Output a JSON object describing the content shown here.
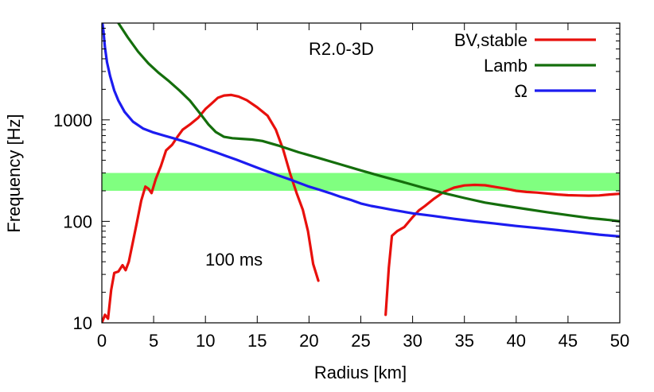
{
  "chart_data": {
    "type": "line",
    "xlabel": "Radius [km]",
    "ylabel": "Frequency [Hz]",
    "xlim": [
      0,
      50
    ],
    "ylim": [
      10,
      9000
    ],
    "yscale": "log",
    "x_ticks": [
      0,
      5,
      10,
      15,
      20,
      25,
      30,
      35,
      40,
      45,
      50
    ],
    "y_ticks": [
      10,
      100,
      1000
    ],
    "grid": false,
    "legend_position": "top-right",
    "annotations": {
      "model": "R2.0-3D",
      "time": "100 ms"
    },
    "band": {
      "y_min": 200,
      "y_max": 300,
      "color": "#80ff80"
    },
    "series": [
      {
        "name": "BV,stable",
        "color": "#e8100c",
        "segments": [
          [
            [
              0,
              10
            ],
            [
              0.3,
              12
            ],
            [
              0.6,
              11
            ],
            [
              0.9,
              21
            ],
            [
              1.2,
              31
            ],
            [
              1.6,
              32
            ],
            [
              2.0,
              37
            ],
            [
              2.3,
              33
            ],
            [
              2.6,
              40
            ],
            [
              3.0,
              63
            ],
            [
              3.4,
              100
            ],
            [
              3.8,
              160
            ],
            [
              4.2,
              220
            ],
            [
              4.5,
              210
            ],
            [
              4.8,
              190
            ],
            [
              5.2,
              260
            ],
            [
              5.7,
              350
            ],
            [
              6.2,
              500
            ],
            [
              6.8,
              570
            ],
            [
              7.3,
              680
            ],
            [
              7.8,
              800
            ],
            [
              8.5,
              900
            ],
            [
              9.3,
              1050
            ],
            [
              10.0,
              1280
            ],
            [
              10.6,
              1450
            ],
            [
              11.2,
              1650
            ],
            [
              11.8,
              1740
            ],
            [
              12.5,
              1760
            ],
            [
              13.2,
              1700
            ],
            [
              14.0,
              1560
            ],
            [
              15.0,
              1330
            ],
            [
              16.0,
              1100
            ],
            [
              16.8,
              800
            ],
            [
              17.5,
              510
            ],
            [
              18.2,
              290
            ],
            [
              18.8,
              190
            ],
            [
              19.4,
              130
            ],
            [
              19.9,
              80
            ],
            [
              20.4,
              38
            ],
            [
              20.9,
              26
            ]
          ],
          [
            [
              27.4,
              12
            ],
            [
              27.7,
              35
            ],
            [
              28.0,
              72
            ],
            [
              28.5,
              80
            ],
            [
              29.2,
              88
            ],
            [
              30.0,
              110
            ],
            [
              30.6,
              128
            ],
            [
              31.2,
              142
            ],
            [
              32.0,
              165
            ],
            [
              33.0,
              195
            ],
            [
              34.0,
              215
            ],
            [
              35.0,
              226
            ],
            [
              36.0,
              229
            ],
            [
              37.0,
              227
            ],
            [
              38.0,
              218
            ],
            [
              39.0,
              210
            ],
            [
              40.0,
              200
            ],
            [
              41.0,
              195
            ],
            [
              42.0,
              192
            ],
            [
              43.0,
              188
            ],
            [
              44.0,
              184
            ],
            [
              45.0,
              181
            ],
            [
              46.0,
              180
            ],
            [
              47.0,
              179
            ],
            [
              48.0,
              180
            ],
            [
              49.0,
              184
            ],
            [
              50.0,
              187
            ]
          ]
        ]
      },
      {
        "name": "Lamb",
        "color": "#146e0c",
        "segments": [
          [
            [
              1.6,
              9000
            ],
            [
              2.5,
              6500
            ],
            [
              3.5,
              4700
            ],
            [
              4.5,
              3600
            ],
            [
              5.5,
              2900
            ],
            [
              6.5,
              2400
            ],
            [
              7.5,
              1950
            ],
            [
              8.5,
              1550
            ],
            [
              9.5,
              1150
            ],
            [
              10.3,
              900
            ],
            [
              11.0,
              760
            ],
            [
              11.8,
              680
            ],
            [
              12.6,
              660
            ],
            [
              13.5,
              650
            ],
            [
              14.5,
              640
            ],
            [
              15.5,
              620
            ],
            [
              17.0,
              560
            ],
            [
              19.0,
              480
            ],
            [
              21.0,
              420
            ],
            [
              23.0,
              365
            ],
            [
              25.0,
              318
            ],
            [
              27.0,
              278
            ],
            [
              29.0,
              245
            ],
            [
              31.0,
              215
            ],
            [
              33.0,
              190
            ],
            [
              35.0,
              170
            ],
            [
              37.0,
              153
            ],
            [
              39.0,
              142
            ],
            [
              41.0,
              132
            ],
            [
              43.0,
              123
            ],
            [
              45.0,
              115
            ],
            [
              47.0,
              108
            ],
            [
              49.0,
              103
            ],
            [
              50.0,
              100
            ]
          ]
        ]
      },
      {
        "name": "Ω",
        "color": "#1c1cf0",
        "segments": [
          [
            [
              0.05,
              9000
            ],
            [
              0.15,
              7500
            ],
            [
              0.3,
              5200
            ],
            [
              0.5,
              3700
            ],
            [
              0.8,
              2700
            ],
            [
              1.2,
              1950
            ],
            [
              1.6,
              1550
            ],
            [
              2.2,
              1200
            ],
            [
              3.0,
              960
            ],
            [
              4.0,
              820
            ],
            [
              5.0,
              750
            ],
            [
              6.0,
              700
            ],
            [
              7.0,
              655
            ],
            [
              8.0,
              610
            ],
            [
              9.0,
              565
            ],
            [
              10.0,
              520
            ],
            [
              11.0,
              480
            ],
            [
              12.0,
              440
            ],
            [
              13.0,
              405
            ],
            [
              14.0,
              370
            ],
            [
              15.0,
              338
            ],
            [
              16.0,
              310
            ],
            [
              17.0,
              284
            ],
            [
              18.0,
              262
            ],
            [
              19.0,
              240
            ],
            [
              20.0,
              220
            ],
            [
              21.0,
              205
            ],
            [
              22.0,
              190
            ],
            [
              23.0,
              175
            ],
            [
              24.0,
              163
            ],
            [
              25.0,
              150
            ],
            [
              26.0,
              142
            ],
            [
              27.0,
              136
            ],
            [
              28.0,
              130
            ],
            [
              30.0,
              120
            ],
            [
              32.0,
              113
            ],
            [
              34.0,
              106
            ],
            [
              36.0,
              100
            ],
            [
              38.0,
              95
            ],
            [
              40.0,
              90
            ],
            [
              42.0,
              86
            ],
            [
              44.0,
              82
            ],
            [
              46.0,
              78
            ],
            [
              48.0,
              74
            ],
            [
              50.0,
              71
            ]
          ]
        ]
      }
    ]
  }
}
